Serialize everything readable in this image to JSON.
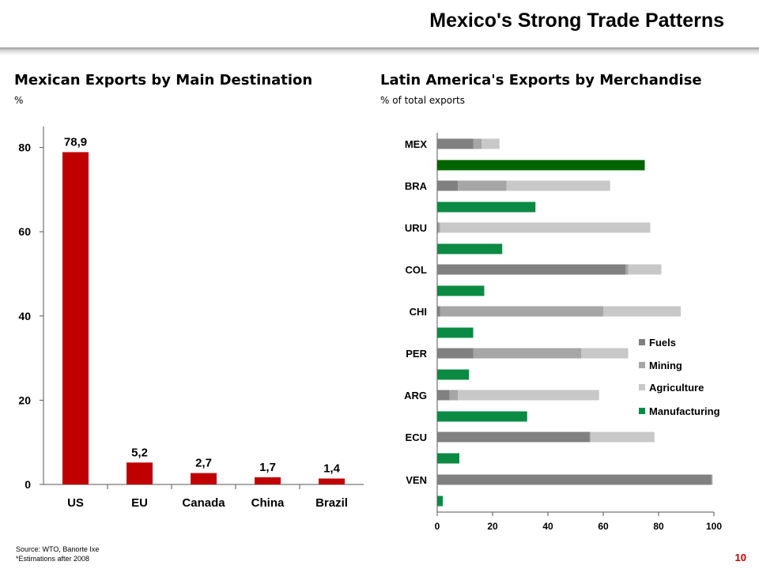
{
  "page": {
    "title": "Mexico's Strong Trade Patterns",
    "source": "Source: WTO, Banorte Ixe",
    "estimation_note": "*Estimations after 2008",
    "page_number": "10"
  },
  "colors": {
    "bar_red": "#c00000",
    "fuels": "#808080",
    "mining": "#a6a6a6",
    "agriculture": "#c8c8c8",
    "manufacturing": "#0b8a43",
    "mex_manufacturing": "#006400",
    "page_number": "#c00000"
  },
  "chart_data": [
    {
      "type": "bar",
      "title": "Mexican Exports by Main Destination",
      "subtitle": "%",
      "categories": [
        "US",
        "EU",
        "Canada",
        "China",
        "Brazil"
      ],
      "values": [
        78.9,
        5.2,
        2.7,
        1.7,
        1.4
      ],
      "data_labels": [
        "78,9",
        "5,2",
        "2,7",
        "1,7",
        "1,4"
      ],
      "ylim": [
        0,
        85
      ],
      "yticks": [
        0,
        20,
        40,
        60,
        80
      ],
      "grid": false,
      "color": "#c00000"
    },
    {
      "type": "bar",
      "orientation": "horizontal",
      "stacked": true,
      "title": "Latin America's Exports by Merchandise",
      "subtitle": "% of total exports",
      "categories": [
        "MEX",
        "BRA",
        "URU",
        "COL",
        "CHI",
        "PER",
        "ARG",
        "ECU",
        "VEN"
      ],
      "series": [
        {
          "name": "Fuels",
          "color": "#808080",
          "values": [
            13,
            7.5,
            0.5,
            68,
            1,
            13,
            4.5,
            55,
            99
          ]
        },
        {
          "name": "Mining",
          "color": "#a6a6a6",
          "values": [
            3,
            17.5,
            0.5,
            1,
            59,
            39,
            3,
            0.5,
            0.5
          ]
        },
        {
          "name": "Agriculture",
          "color": "#c8c8c8",
          "values": [
            6.5,
            37.5,
            76,
            12,
            28,
            17,
            51,
            23,
            0
          ]
        },
        {
          "name": "Manufacturing",
          "color": "#0b8a43",
          "values": [
            75,
            35.5,
            23.5,
            17,
            13,
            11.5,
            32.5,
            8,
            2
          ]
        }
      ],
      "xlim": [
        0,
        100
      ],
      "xticks": [
        0,
        20,
        40,
        60,
        80,
        100
      ],
      "grid": false,
      "legend_position": "right"
    }
  ]
}
